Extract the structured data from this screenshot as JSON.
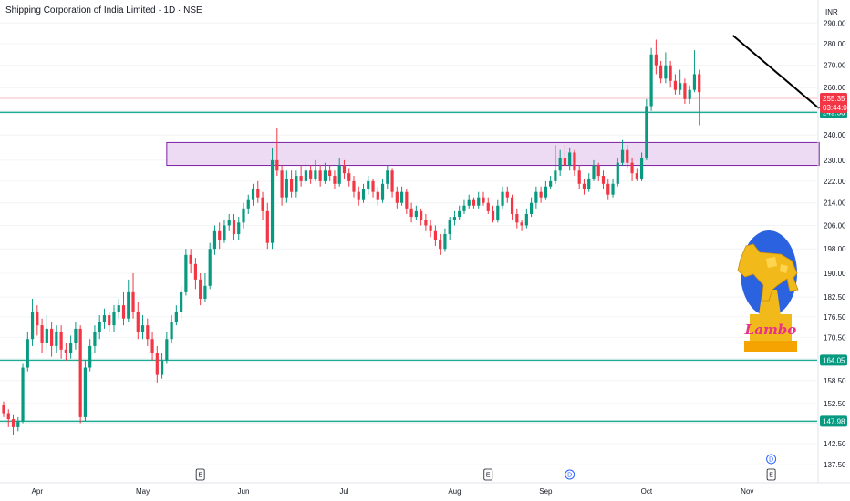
{
  "header": {
    "title": "Shipping Corporation of India Limited · 1D · NSE",
    "currency": "INR"
  },
  "logo": {
    "text": "Lambo"
  },
  "colors": {
    "up": "#089981",
    "down": "#f23645",
    "hline": "#22ab94",
    "zone_fill": "#e7d2ef",
    "zone_border": "#7b1fa2",
    "trendline": "#000000",
    "axis_text": "#131722",
    "last_price_badge": "#f23645",
    "level_badge": "#089981"
  },
  "chart_data": {
    "type": "candlestick",
    "y_scale": "log",
    "ylim": [
      135,
      296
    ],
    "y_ticks": [
      137.5,
      142.5,
      147.5,
      152.5,
      158.5,
      164.5,
      170.5,
      176.5,
      182.5,
      190.0,
      198.0,
      206.0,
      214.0,
      222.0,
      230.0,
      240.0,
      250.0,
      260.0,
      270.0,
      280.0,
      290.0
    ],
    "y_tick_labels": [
      "137.50",
      "142.50",
      "147.50",
      "152.50",
      "158.50",
      "164.50",
      "170.50",
      "176.50",
      "182.50",
      "190.00",
      "198.00",
      "206.00",
      "214.00",
      "222.00",
      "230.00",
      "240.00",
      "250.00",
      "260.00",
      "270.00",
      "280.00",
      "290.00"
    ],
    "x_ticks": [
      {
        "label": "Apr",
        "index": 7
      },
      {
        "label": "May",
        "index": 29
      },
      {
        "label": "Jun",
        "index": 50
      },
      {
        "label": "Jul",
        "index": 71
      },
      {
        "label": "Aug",
        "index": 94
      },
      {
        "label": "Sep",
        "index": 113
      },
      {
        "label": "Oct",
        "index": 134
      },
      {
        "label": "Nov",
        "index": 155
      }
    ],
    "candles": [
      [
        152.0,
        150.0,
        153.0,
        149.0
      ],
      [
        150.0,
        148.5,
        151.0,
        146.5
      ],
      [
        148.5,
        146.5,
        149.5,
        144.5
      ],
      [
        146.5,
        148.0,
        149.0,
        145.5
      ],
      [
        148.0,
        162.0,
        163.0,
        147.5
      ],
      [
        162.0,
        170.0,
        172.0,
        161.0
      ],
      [
        170.0,
        178.0,
        182.0,
        168.0
      ],
      [
        178.0,
        174.0,
        180.0,
        171.0
      ],
      [
        174.0,
        169.0,
        176.0,
        166.0
      ],
      [
        169.0,
        173.0,
        177.0,
        167.0
      ],
      [
        173.0,
        168.0,
        175.0,
        165.0
      ],
      [
        168.0,
        172.0,
        174.0,
        166.0
      ],
      [
        172.0,
        167.0,
        174.0,
        164.5
      ],
      [
        167.0,
        166.0,
        169.0,
        164.0
      ],
      [
        166.0,
        169.0,
        171.0,
        164.5
      ],
      [
        169.0,
        173.0,
        175.0,
        167.0
      ],
      [
        173.0,
        149.0,
        174.0,
        147.5
      ],
      [
        149.0,
        162.0,
        164.0,
        148.0
      ],
      [
        162.0,
        168.0,
        170.0,
        161.0
      ],
      [
        168.0,
        172.0,
        174.0,
        166.0
      ],
      [
        172.0,
        175.0,
        177.0,
        170.0
      ],
      [
        175.0,
        177.0,
        179.0,
        173.0
      ],
      [
        177.0,
        174.0,
        178.0,
        172.0
      ],
      [
        174.0,
        178.0,
        180.0,
        172.0
      ],
      [
        178.0,
        180.0,
        182.0,
        176.0
      ],
      [
        180.0,
        176.0,
        184.0,
        174.0
      ],
      [
        176.0,
        184.0,
        188.0,
        175.0
      ],
      [
        184.0,
        178.0,
        190.0,
        176.0
      ],
      [
        178.0,
        172.0,
        181.0,
        170.0
      ],
      [
        172.0,
        174.0,
        177.0,
        170.0
      ],
      [
        174.0,
        170.0,
        176.0,
        168.0
      ],
      [
        170.0,
        166.0,
        172.0,
        164.0
      ],
      [
        166.0,
        160.0,
        168.0,
        158.0
      ],
      [
        160.0,
        164.0,
        166.0,
        159.0
      ],
      [
        164.0,
        170.0,
        172.0,
        163.0
      ],
      [
        170.0,
        175.0,
        177.0,
        169.0
      ],
      [
        175.0,
        178.0,
        180.0,
        174.0
      ],
      [
        178.0,
        184.0,
        186.0,
        176.0
      ],
      [
        184.0,
        196.0,
        198.0,
        183.0
      ],
      [
        196.0,
        193.0,
        198.0,
        190.0
      ],
      [
        193.0,
        188.0,
        195.0,
        185.0
      ],
      [
        188.0,
        182.0,
        190.0,
        180.0
      ],
      [
        182.0,
        186.0,
        190.0,
        181.0
      ],
      [
        186.0,
        198.0,
        200.0,
        185.0
      ],
      [
        198.0,
        204.0,
        206.0,
        196.0
      ],
      [
        204.0,
        201.0,
        207.0,
        198.0
      ],
      [
        201.0,
        206.0,
        208.0,
        200.0
      ],
      [
        206.0,
        208.0,
        210.0,
        204.0
      ],
      [
        208.0,
        203.0,
        210.0,
        201.0
      ],
      [
        203.0,
        207.0,
        209.0,
        201.0
      ],
      [
        207.0,
        212.0,
        214.0,
        205.0
      ],
      [
        212.0,
        215.0,
        217.0,
        210.0
      ],
      [
        215.0,
        219.0,
        221.0,
        213.0
      ],
      [
        219.0,
        216.0,
        222.0,
        214.0
      ],
      [
        216.0,
        211.0,
        218.0,
        208.0
      ],
      [
        211.0,
        200.0,
        214.0,
        198.0
      ],
      [
        200.0,
        230.0,
        235.0,
        198.0
      ],
      [
        230.0,
        226.0,
        243.0,
        224.0
      ],
      [
        226.0,
        216.0,
        228.0,
        213.0
      ],
      [
        216.0,
        223.0,
        226.0,
        214.0
      ],
      [
        223.0,
        218.0,
        226.0,
        216.0
      ],
      [
        218.0,
        224.0,
        226.0,
        216.0
      ],
      [
        224.0,
        222.0,
        228.0,
        220.0
      ],
      [
        222.0,
        226.0,
        229.0,
        221.0
      ],
      [
        226.0,
        223.0,
        228.0,
        221.0
      ],
      [
        223.0,
        226.0,
        230.0,
        222.0
      ],
      [
        226.0,
        222.0,
        228.0,
        220.0
      ],
      [
        222.0,
        226.0,
        229.0,
        221.0
      ],
      [
        226.0,
        224.0,
        228.0,
        222.0
      ],
      [
        224.0,
        221.0,
        226.0,
        219.0
      ],
      [
        221.0,
        228.0,
        231.0,
        220.0
      ],
      [
        228.0,
        225.0,
        230.0,
        223.0
      ],
      [
        225.0,
        222.0,
        227.0,
        220.0
      ],
      [
        222.0,
        218.0,
        224.0,
        216.0
      ],
      [
        218.0,
        215.0,
        220.0,
        213.0
      ],
      [
        215.0,
        219.0,
        221.0,
        214.0
      ],
      [
        219.0,
        222.0,
        224.0,
        217.0
      ],
      [
        222.0,
        218.0,
        223.0,
        216.0
      ],
      [
        218.0,
        215.0,
        220.0,
        213.0
      ],
      [
        215.0,
        221.0,
        223.0,
        214.0
      ],
      [
        221.0,
        226.0,
        228.0,
        219.0
      ],
      [
        226.0,
        218.0,
        227.0,
        216.0
      ],
      [
        218.0,
        214.0,
        220.0,
        212.0
      ],
      [
        214.0,
        218.0,
        220.0,
        213.0
      ],
      [
        218.0,
        212.0,
        219.0,
        210.0
      ],
      [
        212.0,
        209.0,
        214.0,
        207.0
      ],
      [
        209.0,
        211.0,
        213.0,
        208.0
      ],
      [
        211.0,
        208.0,
        212.0,
        206.0
      ],
      [
        208.0,
        206.0,
        210.0,
        204.0
      ],
      [
        206.0,
        204.0,
        208.0,
        202.0
      ],
      [
        204.0,
        201.0,
        206.0,
        199.0
      ],
      [
        201.0,
        198.0,
        203.0,
        196.0
      ],
      [
        198.0,
        203.0,
        205.0,
        197.0
      ],
      [
        203.0,
        208.0,
        209.0,
        201.0
      ],
      [
        208.0,
        209.0,
        211.0,
        206.0
      ],
      [
        209.0,
        211.0,
        213.0,
        208.0
      ],
      [
        211.0,
        213.0,
        215.0,
        210.0
      ],
      [
        213.0,
        215.0,
        217.0,
        212.0
      ],
      [
        215.0,
        213.0,
        216.0,
        212.0
      ],
      [
        213.0,
        216.0,
        218.0,
        212.0
      ],
      [
        216.0,
        214.0,
        218.0,
        213.0
      ],
      [
        214.0,
        211.0,
        216.0,
        210.0
      ],
      [
        211.0,
        208.0,
        213.0,
        207.0
      ],
      [
        208.0,
        213.0,
        215.0,
        207.0
      ],
      [
        213.0,
        218.0,
        220.0,
        212.0
      ],
      [
        218.0,
        216.0,
        220.0,
        214.0
      ],
      [
        216.0,
        210.0,
        217.0,
        208.0
      ],
      [
        210.0,
        207.0,
        212.0,
        205.0
      ],
      [
        207.0,
        206.0,
        208.0,
        204.0
      ],
      [
        206.0,
        210.0,
        212.0,
        205.0
      ],
      [
        210.0,
        214.0,
        216.0,
        209.0
      ],
      [
        214.0,
        218.0,
        220.0,
        212.0
      ],
      [
        218.0,
        216.0,
        220.0,
        214.0
      ],
      [
        216.0,
        220.0,
        222.0,
        215.0
      ],
      [
        220.0,
        222.0,
        224.0,
        219.0
      ],
      [
        222.0,
        226.0,
        236.0,
        221.0
      ],
      [
        226.0,
        231.0,
        234.0,
        224.0
      ],
      [
        231.0,
        228.0,
        236.0,
        226.0
      ],
      [
        228.0,
        233.0,
        235.0,
        226.0
      ],
      [
        233.0,
        226.0,
        234.0,
        224.0
      ],
      [
        226.0,
        221.0,
        228.0,
        219.0
      ],
      [
        221.0,
        219.0,
        223.0,
        217.0
      ],
      [
        219.0,
        223.0,
        225.0,
        218.0
      ],
      [
        223.0,
        228.0,
        230.0,
        222.0
      ],
      [
        228.0,
        224.0,
        229.0,
        222.0
      ],
      [
        224.0,
        221.0,
        226.0,
        219.0
      ],
      [
        221.0,
        217.0,
        223.0,
        215.0
      ],
      [
        217.0,
        221.0,
        223.0,
        216.0
      ],
      [
        221.0,
        229.0,
        231.0,
        220.0
      ],
      [
        229.0,
        234.0,
        238.0,
        228.0
      ],
      [
        234.0,
        229.0,
        236.0,
        227.0
      ],
      [
        229.0,
        225.0,
        231.0,
        222.0
      ],
      [
        225.0,
        223.0,
        227.0,
        222.0
      ],
      [
        223.0,
        231.0,
        233.0,
        222.0
      ],
      [
        231.0,
        252.0,
        255.0,
        230.0
      ],
      [
        252.0,
        275.0,
        278.0,
        250.0
      ],
      [
        275.0,
        270.0,
        282.0,
        266.0
      ],
      [
        270.0,
        264.0,
        272.0,
        262.0
      ],
      [
        264.0,
        270.0,
        276.0,
        262.0
      ],
      [
        270.0,
        263.0,
        272.0,
        260.0
      ],
      [
        263.0,
        259.0,
        266.0,
        257.0
      ],
      [
        259.0,
        262.0,
        268.0,
        257.0
      ],
      [
        262.0,
        255.0,
        264.0,
        253.0
      ],
      [
        255.0,
        259.0,
        261.0,
        253.0
      ],
      [
        259.0,
        266.0,
        277.0,
        258.0
      ],
      [
        266.0,
        258.0,
        268.0,
        244.0
      ]
    ],
    "candle_x0": 4,
    "candle_step": 5.26,
    "last_price": {
      "value": 255.35,
      "label": "255.35",
      "countdown": "03:44:06"
    },
    "horizontal_levels": [
      {
        "value": 249.36,
        "label": "249.36"
      },
      {
        "value": 164.05,
        "label": "164.05"
      },
      {
        "value": 147.98,
        "label": "147.98"
      }
    ],
    "zone": {
      "from_index": 34,
      "to_index": 170,
      "low": 228.0,
      "high": 237.0
    },
    "trendline": {
      "from": {
        "index": 152,
        "value": 284.0
      },
      "to": {
        "index": 170,
        "value": 251.0
      }
    },
    "events": [
      {
        "label": "E",
        "index": 41,
        "row": 1
      },
      {
        "label": "E",
        "index": 101,
        "row": 1
      },
      {
        "label": "D",
        "index": 118,
        "row": 1
      },
      {
        "label": "D",
        "index": 160,
        "row": 0
      },
      {
        "label": "E",
        "index": 160,
        "row": 1
      }
    ]
  }
}
